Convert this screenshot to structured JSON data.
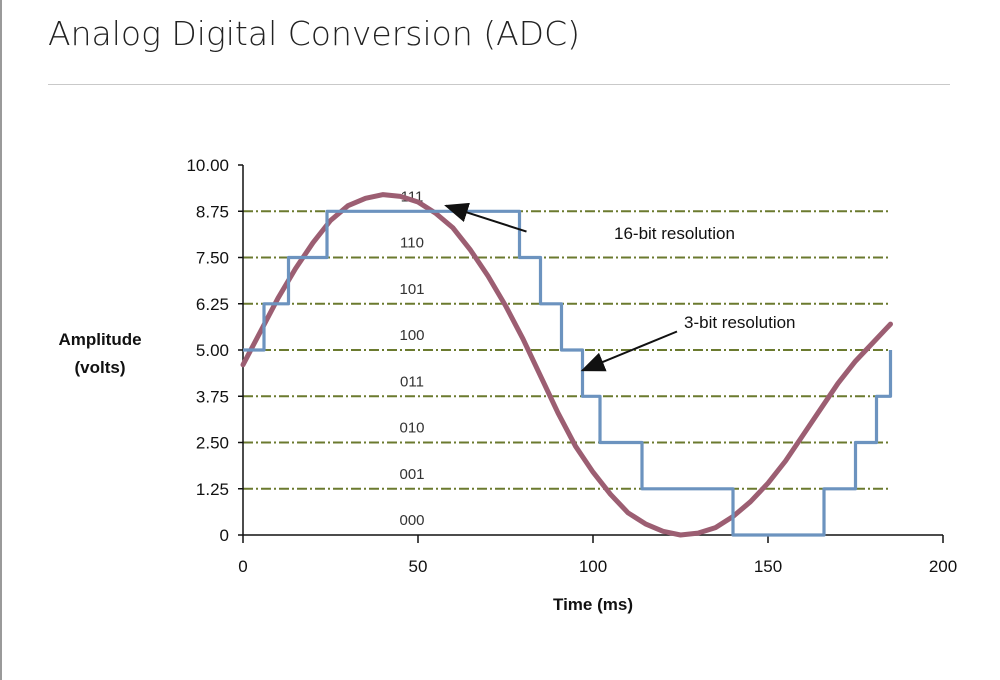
{
  "slide": {
    "title": "Analog Digital Conversion (ADC)"
  },
  "chart_data": {
    "type": "line",
    "ylabel_lines": [
      "Amplitude",
      "(volts)"
    ],
    "xlabel": "Time (ms)",
    "xlim": [
      0,
      200
    ],
    "ylim": [
      0,
      10
    ],
    "x_ticks": [
      "0",
      "50",
      "100",
      "150",
      "200"
    ],
    "x_tick_values": [
      0,
      50,
      100,
      150,
      200
    ],
    "y_ticks": [
      "0",
      "1.25",
      "2.50",
      "3.75",
      "5.00",
      "6.25",
      "7.50",
      "8.75",
      "10.00"
    ],
    "y_tick_values": [
      0,
      1.25,
      2.5,
      3.75,
      5.0,
      6.25,
      7.5,
      8.75,
      10.0
    ],
    "grid": "horizontal",
    "level_codes": [
      {
        "y": 0.4,
        "code": "000"
      },
      {
        "y": 1.65,
        "code": "001"
      },
      {
        "y": 2.9,
        "code": "010"
      },
      {
        "y": 4.15,
        "code": "011"
      },
      {
        "y": 5.4,
        "code": "100"
      },
      {
        "y": 6.65,
        "code": "101"
      },
      {
        "y": 7.9,
        "code": "110"
      },
      {
        "y": 9.15,
        "code": "111"
      }
    ],
    "series": [
      {
        "name": "16-bit resolution",
        "style": "smooth",
        "color": "#9c5e72",
        "x": [
          0,
          5,
          10,
          15,
          20,
          25,
          30,
          35,
          40,
          45,
          50,
          55,
          60,
          65,
          70,
          75,
          80,
          85,
          90,
          95,
          100,
          105,
          110,
          115,
          120,
          125,
          130,
          135,
          140,
          145,
          150,
          155,
          160,
          165,
          170,
          175,
          180,
          185
        ],
        "y": [
          4.6,
          5.5,
          6.4,
          7.2,
          7.9,
          8.5,
          8.9,
          9.1,
          9.2,
          9.15,
          9.0,
          8.7,
          8.3,
          7.7,
          7.0,
          6.2,
          5.3,
          4.3,
          3.3,
          2.4,
          1.7,
          1.1,
          0.6,
          0.3,
          0.1,
          0.0,
          0.05,
          0.2,
          0.5,
          0.9,
          1.4,
          2.0,
          2.7,
          3.4,
          4.1,
          4.7,
          5.2,
          5.7
        ]
      },
      {
        "name": "3-bit resolution",
        "style": "step",
        "color": "#6c93bf",
        "x": [
          0,
          6,
          6,
          13,
          13,
          24,
          24,
          79,
          79,
          85,
          85,
          91,
          91,
          97,
          97,
          102,
          102,
          114,
          114,
          140,
          140,
          166,
          166,
          175,
          175,
          181,
          181,
          185,
          185
        ],
        "y": [
          5.0,
          5.0,
          6.25,
          6.25,
          7.5,
          7.5,
          8.75,
          8.75,
          7.5,
          7.5,
          6.25,
          6.25,
          5.0,
          5.0,
          3.75,
          3.75,
          2.5,
          2.5,
          1.25,
          1.25,
          0,
          0,
          1.25,
          1.25,
          2.5,
          2.5,
          3.75,
          3.75,
          5.0
        ]
      }
    ],
    "annotations": [
      {
        "text": "16-bit resolution",
        "label_x": 106,
        "label_y": 8.0,
        "arrow_from": [
          81,
          8.2
        ],
        "arrow_to": [
          58,
          8.9
        ]
      },
      {
        "text": "3-bit resolution",
        "label_x": 126,
        "label_y": 5.6,
        "arrow_from": [
          124,
          5.5
        ],
        "arrow_to": [
          97,
          4.45
        ]
      }
    ]
  }
}
